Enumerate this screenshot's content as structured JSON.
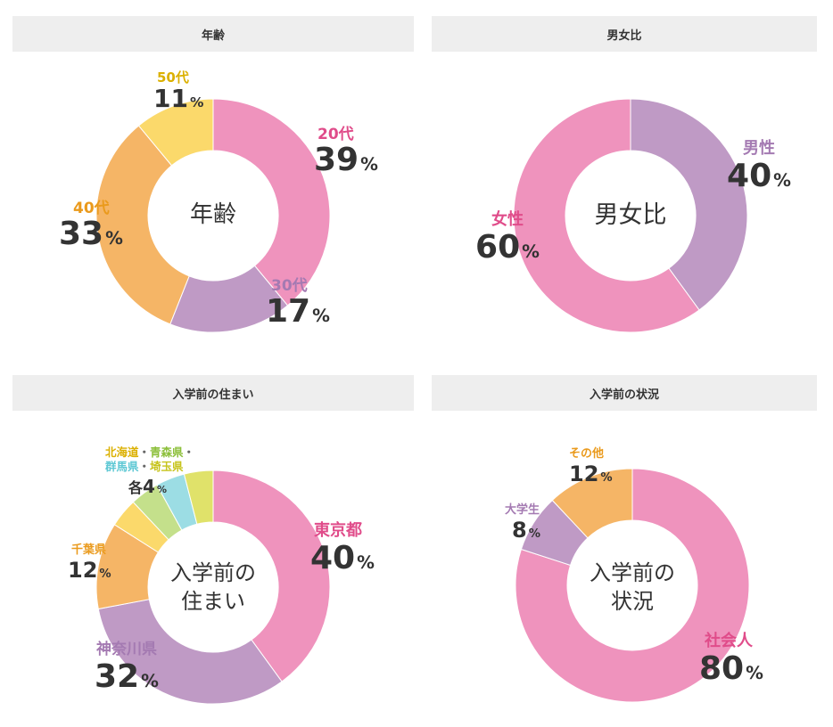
{
  "colors": {
    "pink": "#ef93bd",
    "purple": "#bf9ac5",
    "orange": "#f5b566",
    "yellow": "#fbd96b",
    "green": "#c4e08b",
    "cyan": "#9cdde4",
    "lime": "#e0e26a",
    "header_bg": "#eeeeee",
    "label_pink": "#e04c8a",
    "label_purple": "#a47ab2",
    "label_orange": "#ea9a1c",
    "label_yellow": "#dbb000",
    "label_cyan": "#5ec8d4",
    "label_lime": "#c7c41d",
    "label_green": "#8cbf3a"
  },
  "chart_data": [
    {
      "type": "pie",
      "title": "年齢",
      "center_label": "年齢",
      "slices": [
        {
          "label": "20代",
          "value": 39,
          "pct": "39",
          "color": "#ef93bd"
        },
        {
          "label": "30代",
          "value": 17,
          "pct": "17",
          "color": "#bf9ac5"
        },
        {
          "label": "40代",
          "value": 33,
          "pct": "33",
          "color": "#f5b566"
        },
        {
          "label": "50代",
          "value": 11,
          "pct": "11",
          "color": "#fbd96b"
        }
      ]
    },
    {
      "type": "pie",
      "title": "男女比",
      "center_label": "男女比",
      "slices": [
        {
          "label": "男性",
          "value": 40,
          "pct": "40",
          "color": "#bf9ac5"
        },
        {
          "label": "女性",
          "value": 60,
          "pct": "60",
          "color": "#ef93bd"
        }
      ]
    },
    {
      "type": "pie",
      "title": "入学前の住まい",
      "center_label": "入学前の\n住まい",
      "slices": [
        {
          "label": "東京都",
          "value": 40,
          "pct": "40",
          "color": "#ef93bd"
        },
        {
          "label": "神奈川県",
          "value": 32,
          "pct": "32",
          "color": "#bf9ac5"
        },
        {
          "label": "千葉県",
          "value": 12,
          "pct": "12",
          "color": "#f5b566"
        },
        {
          "label": "北海道",
          "value": 4,
          "pct": "4",
          "color": "#fbd96b"
        },
        {
          "label": "青森県",
          "value": 4,
          "pct": "4",
          "color": "#c4e08b"
        },
        {
          "label": "群馬県",
          "value": 4,
          "pct": "4",
          "color": "#9cdde4"
        },
        {
          "label": "埼玉県",
          "value": 4,
          "pct": "4",
          "color": "#e0e26a"
        }
      ],
      "group_label": {
        "prefix": "各",
        "pct": "4"
      }
    },
    {
      "type": "pie",
      "title": "入学前の状況",
      "center_label": "入学前の\n状況",
      "slices": [
        {
          "label": "社会人",
          "value": 80,
          "pct": "80",
          "color": "#ef93bd"
        },
        {
          "label": "大学生",
          "value": 8,
          "pct": "8",
          "color": "#bf9ac5"
        },
        {
          "label": "その他",
          "value": 12,
          "pct": "12",
          "color": "#f5b566"
        }
      ]
    }
  ],
  "percent_sign": "%",
  "dot": "・"
}
